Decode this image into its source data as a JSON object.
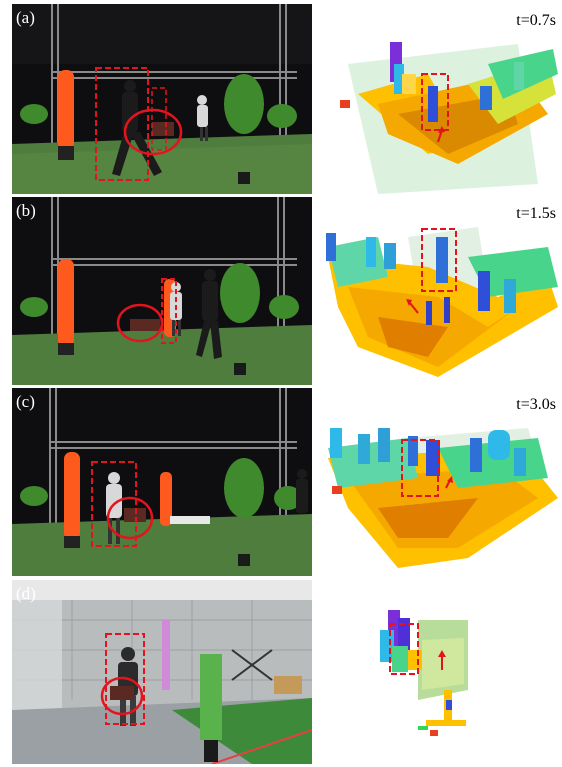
{
  "panels": [
    {
      "label": "(a)",
      "time": "t=0.7s"
    },
    {
      "label": "(b)",
      "time": "t=1.5s"
    },
    {
      "label": "(c)",
      "time": "t=3.0s"
    },
    {
      "label": "(d)",
      "time": ""
    }
  ],
  "colors": {
    "highlight": "#e3141e",
    "floor_green": "#4f7d3e",
    "backdrop": "#0d0d0d",
    "pillar": "#ff5a1e"
  }
}
